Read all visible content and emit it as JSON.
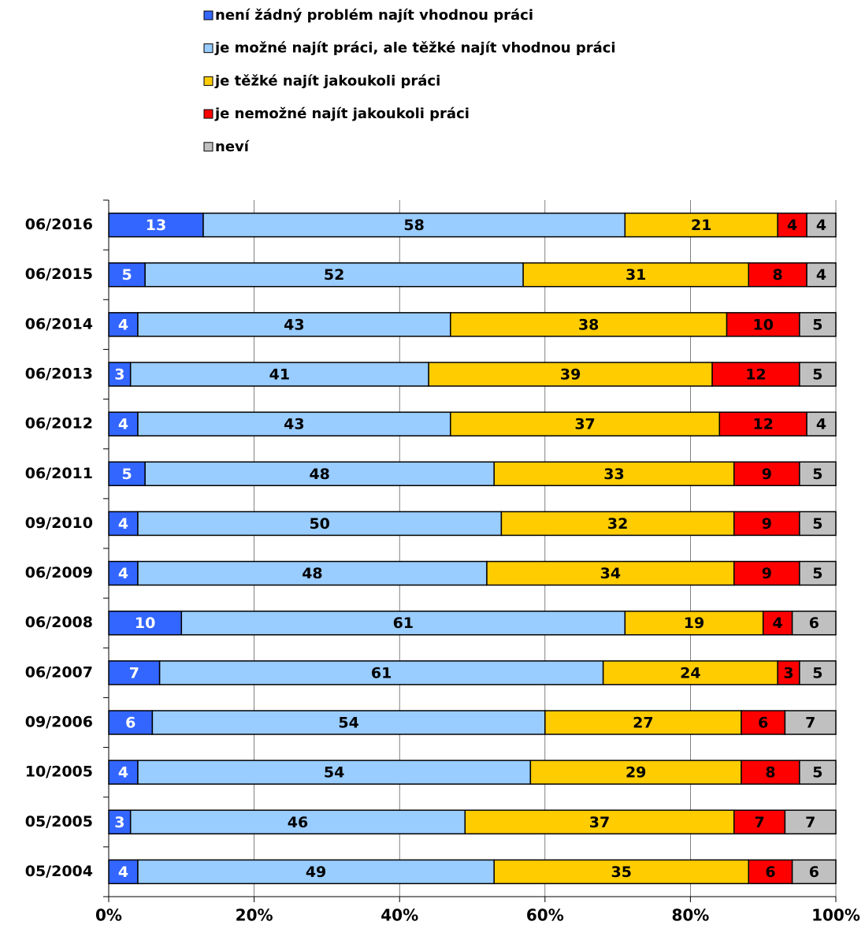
{
  "chart_data": {
    "type": "stacked-bar-horizontal",
    "categories": [
      "06/2016",
      "06/2015",
      "06/2014",
      "06/2013",
      "06/2012",
      "06/2011",
      "09/2010",
      "06/2009",
      "06/2008",
      "06/2007",
      "09/2006",
      "10/2005",
      "05/2005",
      "05/2004"
    ],
    "series": [
      {
        "name": "není žádný problém najít vhodnou práci",
        "color": "#3366ff",
        "values": [
          13,
          5,
          4,
          3,
          4,
          5,
          4,
          4,
          10,
          7,
          6,
          4,
          3,
          4
        ]
      },
      {
        "name": "je možné najít práci, ale těžké najít vhodnou práci",
        "color": "#99ccff",
        "values": [
          58,
          52,
          43,
          41,
          43,
          48,
          50,
          48,
          61,
          61,
          54,
          54,
          46,
          49
        ]
      },
      {
        "name": "je těžké najít jakoukoli práci",
        "color": "#ffcc00",
        "values": [
          21,
          31,
          38,
          39,
          37,
          33,
          32,
          34,
          19,
          24,
          27,
          29,
          37,
          35
        ]
      },
      {
        "name": "je nemožné najít jakoukoli práci",
        "color": "#ff0000",
        "values": [
          4,
          8,
          10,
          12,
          12,
          9,
          9,
          9,
          4,
          3,
          6,
          8,
          7,
          6
        ]
      },
      {
        "name": "neví",
        "color": "#c0c0c0",
        "values": [
          4,
          4,
          5,
          5,
          4,
          5,
          5,
          5,
          6,
          5,
          7,
          5,
          7,
          6
        ]
      }
    ],
    "xlim": [
      0,
      100
    ],
    "xticks": [
      {
        "value": 0,
        "label": "0%"
      },
      {
        "value": 20,
        "label": "20%"
      },
      {
        "value": 40,
        "label": "40%"
      },
      {
        "value": 60,
        "label": "60%"
      },
      {
        "value": 80,
        "label": "80%"
      },
      {
        "value": 100,
        "label": "100%"
      }
    ],
    "grid": true
  }
}
